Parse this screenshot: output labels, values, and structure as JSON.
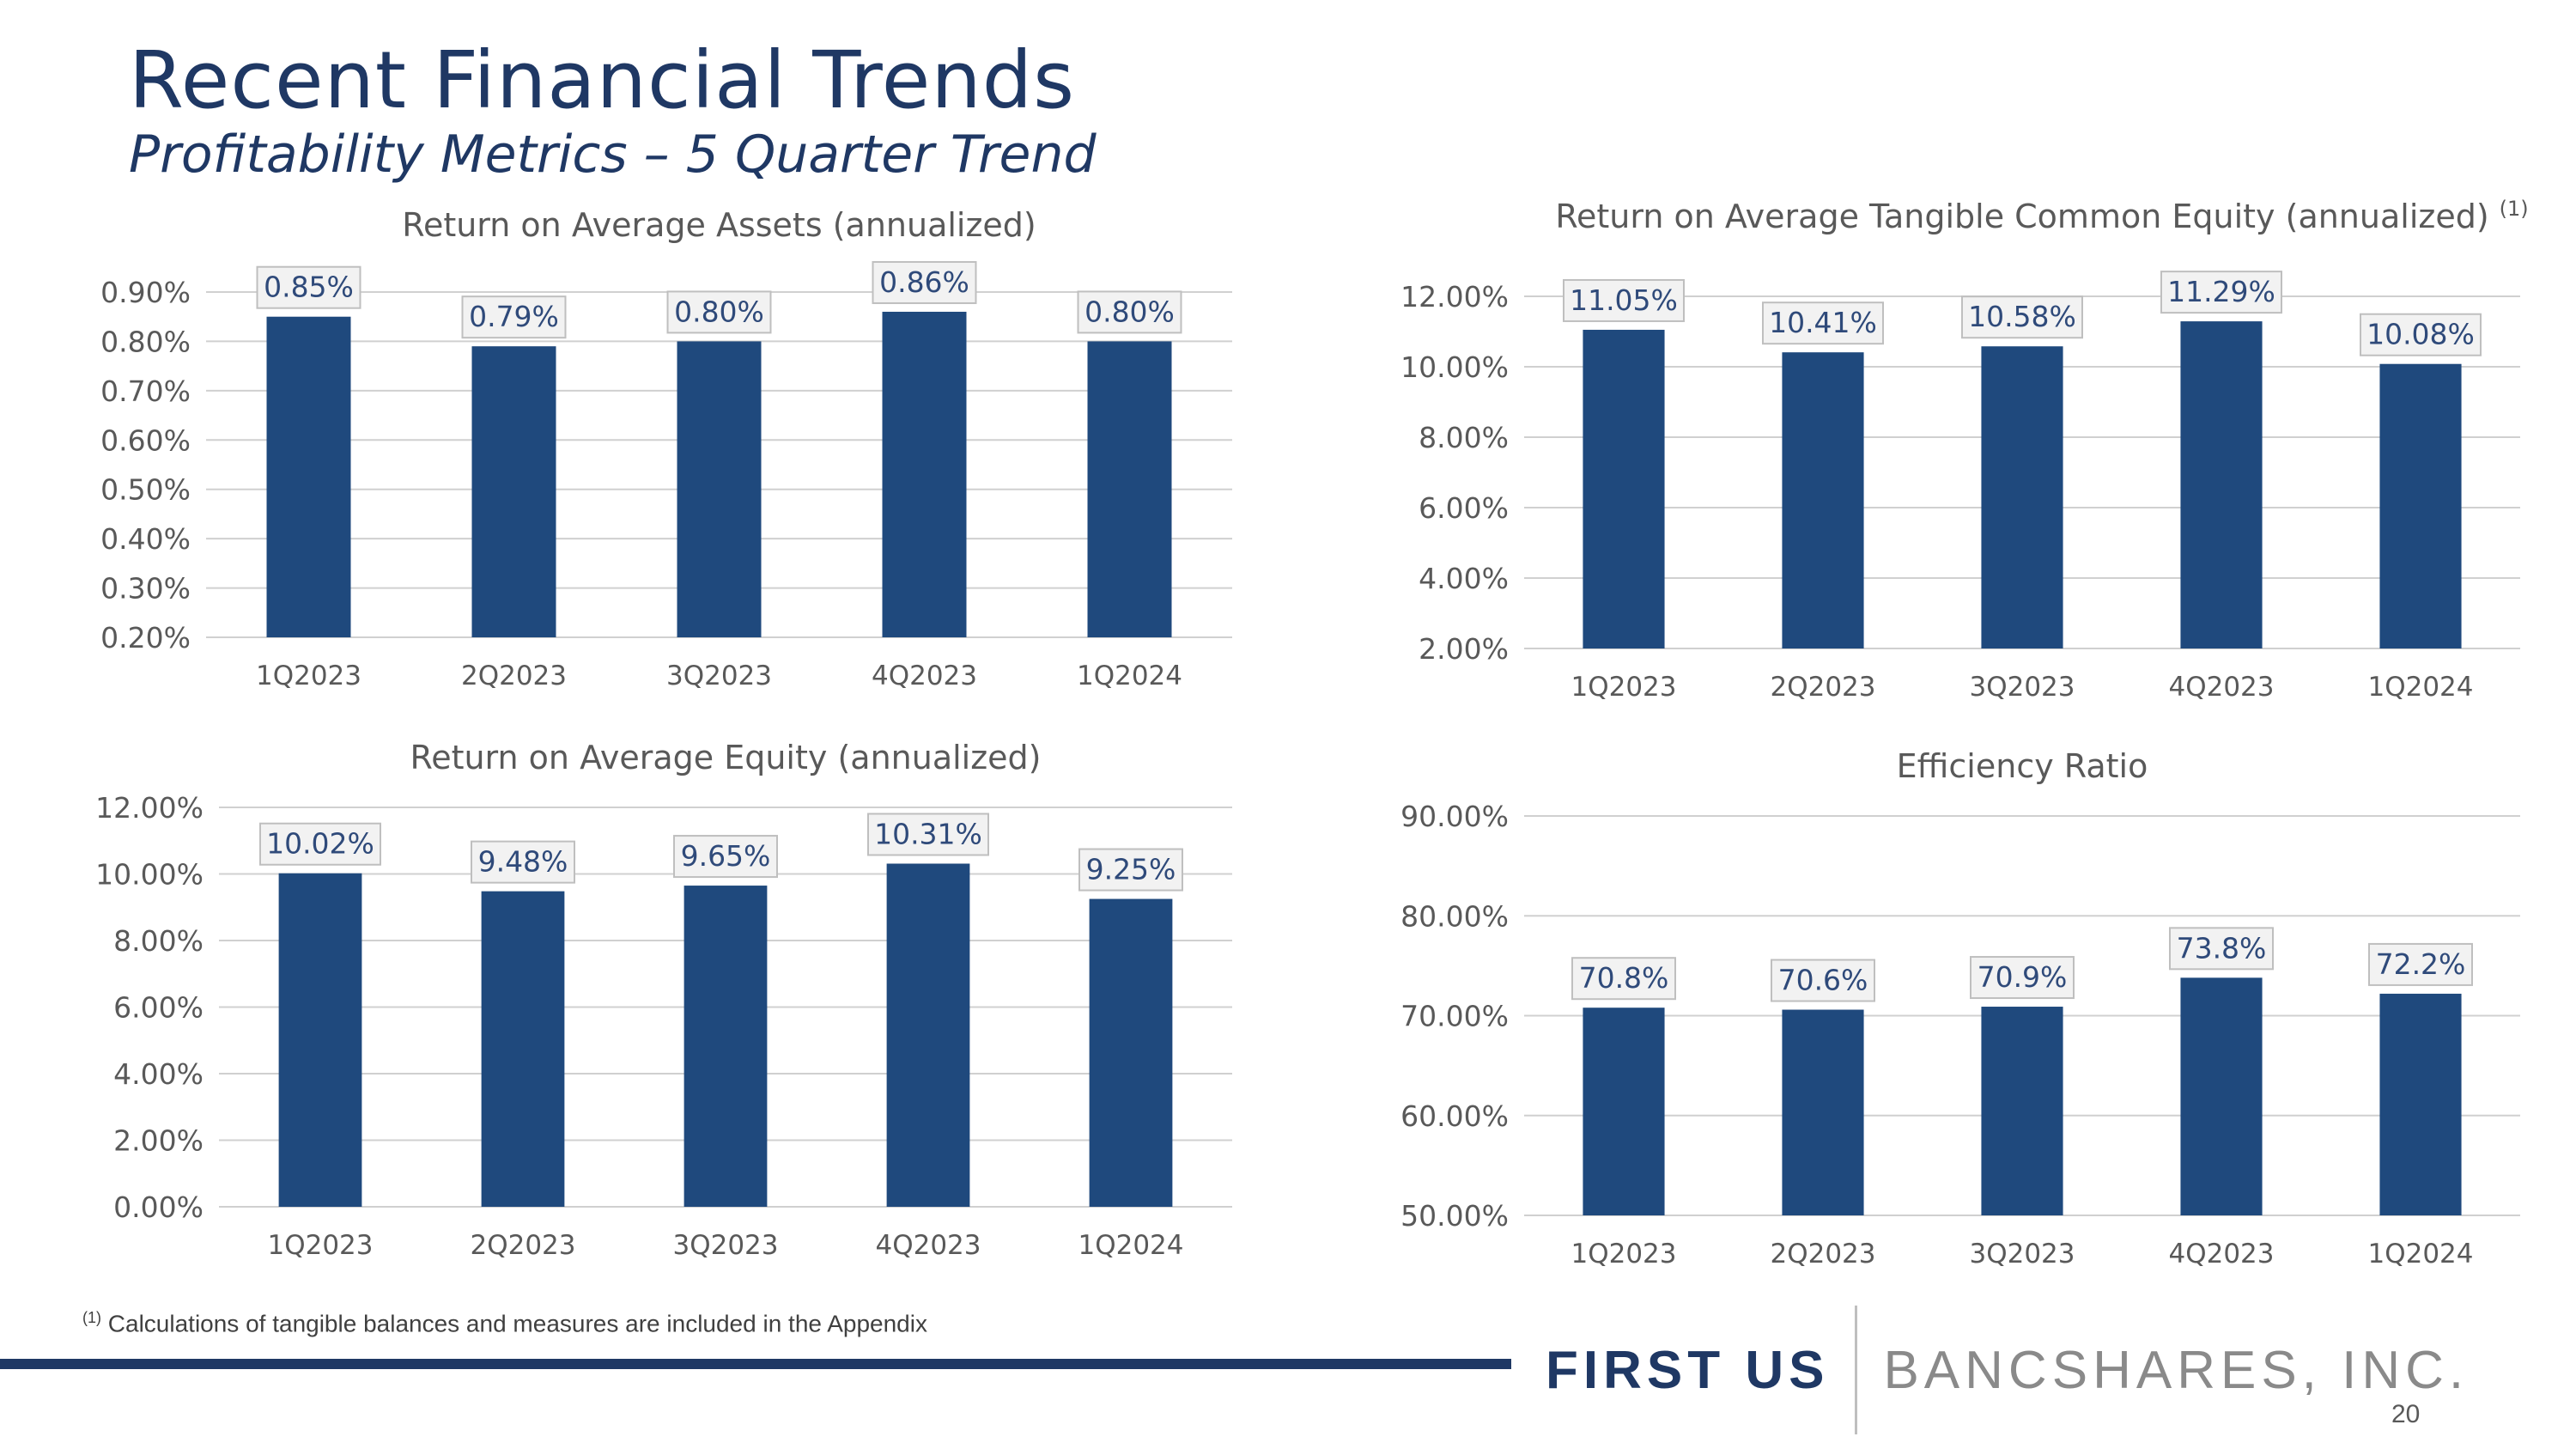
{
  "title": "Recent Financial Trends",
  "subtitle": "Profitability Metrics – 5 Quarter Trend",
  "footnote": {
    "marker": "(1)",
    "text": " Calculations of tangible balances and measures are included in the Appendix"
  },
  "brand": {
    "first": "FIRST US",
    "rest": "BANCSHARES, INC."
  },
  "page_number": "20",
  "colors": {
    "bar": "#1f497d",
    "title": "#1f3864",
    "label_bg": "#f2f2f2"
  },
  "chart_data": [
    {
      "id": "roaa",
      "type": "bar",
      "title": "Return on Average Assets (annualized)",
      "title_note": "",
      "categories": [
        "1Q2023",
        "2Q2023",
        "3Q2023",
        "4Q2023",
        "1Q2024"
      ],
      "values": [
        0.85,
        0.79,
        0.8,
        0.86,
        0.8
      ],
      "data_labels": [
        "0.85%",
        "0.79%",
        "0.80%",
        "0.86%",
        "0.80%"
      ],
      "ylim": [
        0.2,
        0.9
      ],
      "yticks": [
        0.2,
        0.3,
        0.4,
        0.5,
        0.6,
        0.7,
        0.8,
        0.9
      ],
      "ytick_labels": [
        "0.20%",
        "0.30%",
        "0.40%",
        "0.50%",
        "0.60%",
        "0.70%",
        "0.80%",
        "0.90%"
      ]
    },
    {
      "id": "rotce",
      "type": "bar",
      "title": "Return on Average Tangible Common Equity (annualized)",
      "title_note": "(1)",
      "categories": [
        "1Q2023",
        "2Q2023",
        "3Q2023",
        "4Q2023",
        "1Q2024"
      ],
      "values": [
        11.05,
        10.41,
        10.58,
        11.29,
        10.08
      ],
      "data_labels": [
        "11.05%",
        "10.41%",
        "10.58%",
        "11.29%",
        "10.08%"
      ],
      "ylim": [
        2.0,
        12.0
      ],
      "yticks": [
        2,
        4,
        6,
        8,
        10,
        12
      ],
      "ytick_labels": [
        "2.00%",
        "4.00%",
        "6.00%",
        "8.00%",
        "10.00%",
        "12.00%"
      ]
    },
    {
      "id": "roae",
      "type": "bar",
      "title": "Return on Average Equity (annualized)",
      "title_note": "",
      "categories": [
        "1Q2023",
        "2Q2023",
        "3Q2023",
        "4Q2023",
        "1Q2024"
      ],
      "values": [
        10.02,
        9.48,
        9.65,
        10.31,
        9.25
      ],
      "data_labels": [
        "10.02%",
        "9.48%",
        "9.65%",
        "10.31%",
        "9.25%"
      ],
      "ylim": [
        0.0,
        12.0
      ],
      "yticks": [
        0,
        2,
        4,
        6,
        8,
        10,
        12
      ],
      "ytick_labels": [
        "0.00%",
        "2.00%",
        "4.00%",
        "6.00%",
        "8.00%",
        "10.00%",
        "12.00%"
      ]
    },
    {
      "id": "efficiency",
      "type": "bar",
      "title": "Efficiency Ratio",
      "title_note": "",
      "categories": [
        "1Q2023",
        "2Q2023",
        "3Q2023",
        "4Q2023",
        "1Q2024"
      ],
      "values": [
        70.8,
        70.6,
        70.9,
        73.8,
        72.2
      ],
      "data_labels": [
        "70.8%",
        "70.6%",
        "70.9%",
        "73.8%",
        "72.2%"
      ],
      "ylim": [
        50.0,
        90.0
      ],
      "yticks": [
        50,
        60,
        70,
        80,
        90
      ],
      "ytick_labels": [
        "50.00%",
        "60.00%",
        "70.00%",
        "80.00%",
        "90.00%"
      ]
    }
  ]
}
